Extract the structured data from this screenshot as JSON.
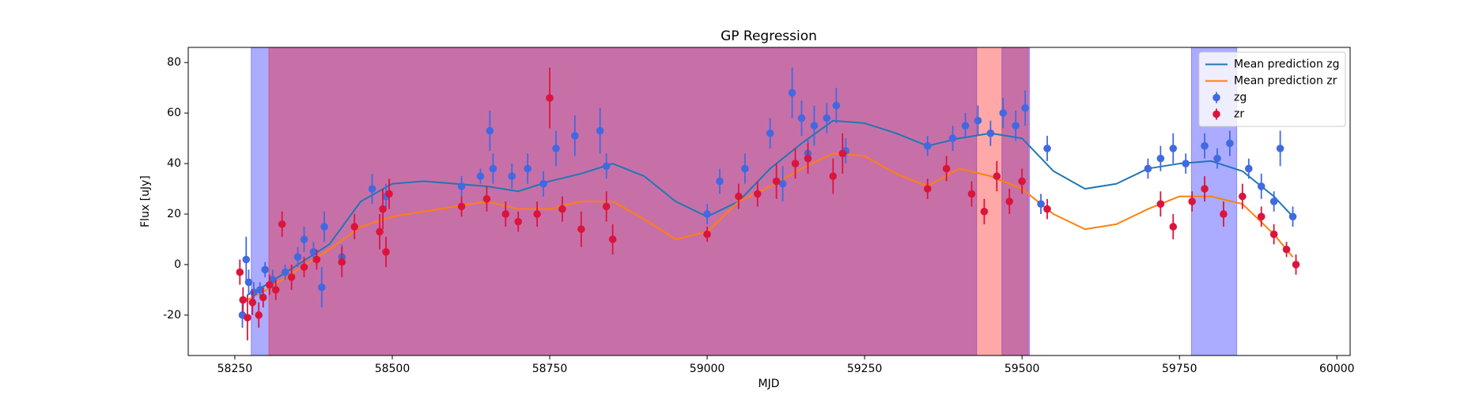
{
  "chart_data": {
    "type": "line",
    "title": "GP Regression",
    "x_label": "MJD",
    "y_label": "Flux [uJy]",
    "xlim": [
      58176,
      60021
    ],
    "ylim": [
      -36,
      86
    ],
    "xticks": [
      58250,
      58500,
      58750,
      59000,
      59250,
      59500,
      59750,
      60000
    ],
    "yticks": [
      -20,
      0,
      20,
      40,
      60,
      80
    ],
    "legend": "upper right",
    "grid": false,
    "shaded_regions": [
      {
        "series": "zg",
        "color": "#0000ff",
        "opacity": 0.33,
        "ranges": [
          [
            58276,
            59428
          ],
          [
            59468,
            59512
          ],
          [
            59769,
            59841
          ]
        ]
      },
      {
        "series": "zr",
        "color": "#ff0000",
        "opacity": 0.34,
        "ranges": [
          [
            58304,
            59510
          ]
        ]
      }
    ],
    "series": [
      {
        "name": "Mean prediction zg",
        "kind": "line",
        "color": "#1f77b4",
        "x": [
          58270,
          58300,
          58350,
          58400,
          58450,
          58500,
          58550,
          58600,
          58650,
          58700,
          58750,
          58800,
          58850,
          58900,
          58950,
          59000,
          59050,
          59100,
          59150,
          59200,
          59250,
          59300,
          59350,
          59400,
          59450,
          59500,
          59550,
          59600,
          59650,
          59700,
          59750,
          59800,
          59850,
          59900,
          59930
        ],
        "values": [
          -12,
          -8,
          0,
          8,
          25,
          32,
          33,
          32,
          31,
          29,
          33,
          36,
          40,
          35,
          25,
          19,
          25,
          38,
          48,
          57,
          56,
          52,
          47,
          50,
          52,
          50,
          37,
          30,
          32,
          38,
          40,
          41,
          37,
          27,
          19
        ]
      },
      {
        "name": "Mean prediction zr",
        "kind": "line",
        "color": "#ff7f0e",
        "x": [
          58270,
          58300,
          58350,
          58400,
          58450,
          58500,
          58550,
          58600,
          58650,
          58700,
          58750,
          58800,
          58850,
          58900,
          58950,
          59000,
          59050,
          59100,
          59150,
          59200,
          59250,
          59300,
          59350,
          59400,
          59450,
          59500,
          59550,
          59600,
          59650,
          59700,
          59750,
          59800,
          59850,
          59900,
          59930
        ],
        "values": [
          -14,
          -10,
          -2,
          6,
          15,
          19,
          21,
          23,
          25,
          22,
          22,
          25,
          25,
          18,
          10,
          13,
          25,
          31,
          38,
          44,
          43,
          36,
          31,
          38,
          35,
          30,
          20,
          14,
          16,
          22,
          27,
          27,
          24,
          12,
          3
        ]
      },
      {
        "name": "zg",
        "kind": "errorbar",
        "color": "#4169e1",
        "x": [
          58262,
          58268,
          58272,
          58280,
          58290,
          58298,
          58310,
          58330,
          58350,
          58360,
          58375,
          58388,
          58392,
          58420,
          58468,
          58490,
          58610,
          58640,
          58655,
          58660,
          58690,
          58715,
          58740,
          58760,
          58790,
          58830,
          58840,
          59000,
          59020,
          59060,
          59100,
          59120,
          59135,
          59150,
          59160,
          59170,
          59190,
          59205,
          59220,
          59350,
          59390,
          59410,
          59430,
          59450,
          59470,
          59490,
          59505,
          59530,
          59540,
          59700,
          59720,
          59740,
          59760,
          59790,
          59810,
          59830,
          59860,
          59880,
          59900,
          59910,
          59930
        ],
        "values": [
          -20,
          2,
          -7,
          -11,
          -10,
          -2,
          -6,
          -3,
          3,
          10,
          5,
          -9,
          15,
          3,
          30,
          27,
          31,
          35,
          53,
          38,
          35,
          38,
          32,
          46,
          51,
          53,
          39,
          20,
          33,
          38,
          52,
          32,
          68,
          58,
          44,
          55,
          58,
          63,
          45,
          47,
          50,
          55,
          57,
          52,
          60,
          55,
          62,
          24,
          46,
          38,
          42,
          46,
          40,
          47,
          42,
          48,
          38,
          31,
          25,
          46,
          19
        ],
        "errors": [
          5,
          9,
          5,
          4,
          3,
          3,
          4,
          3,
          4,
          5,
          4,
          8,
          6,
          5,
          6,
          5,
          4,
          3,
          8,
          6,
          5,
          6,
          5,
          7,
          8,
          9,
          5,
          4,
          5,
          6,
          6,
          7,
          10,
          7,
          6,
          8,
          6,
          7,
          5,
          4,
          5,
          5,
          6,
          5,
          6,
          6,
          7,
          4,
          5,
          4,
          5,
          6,
          4,
          5,
          4,
          5,
          4,
          5,
          4,
          7,
          4
        ]
      },
      {
        "name": "zr",
        "kind": "errorbar",
        "color": "#dc143c",
        "x": [
          58258,
          58263,
          58270,
          58278,
          58288,
          58295,
          58305,
          58315,
          58325,
          58340,
          58360,
          58380,
          58420,
          58440,
          58480,
          58485,
          58490,
          58495,
          58610,
          58650,
          58680,
          58700,
          58730,
          58750,
          58770,
          58800,
          58840,
          58850,
          59000,
          59050,
          59080,
          59110,
          59140,
          59160,
          59200,
          59215,
          59350,
          59380,
          59420,
          59440,
          59460,
          59480,
          59500,
          59540,
          59720,
          59740,
          59770,
          59790,
          59820,
          59850,
          59880,
          59900,
          59920,
          59935
        ],
        "values": [
          -3,
          -14,
          -21,
          -15,
          -20,
          -13,
          -8,
          -10,
          16,
          -5,
          -1,
          2,
          1,
          15,
          13,
          22,
          5,
          28,
          23,
          26,
          20,
          17,
          20,
          66,
          22,
          14,
          23,
          10,
          12,
          27,
          28,
          33,
          40,
          42,
          35,
          44,
          30,
          38,
          28,
          21,
          35,
          25,
          33,
          22,
          24,
          15,
          25,
          30,
          20,
          27,
          19,
          12,
          6,
          0
        ],
        "errors": [
          5,
          5,
          9,
          5,
          5,
          4,
          4,
          4,
          5,
          5,
          4,
          4,
          6,
          5,
          7,
          8,
          6,
          6,
          4,
          5,
          5,
          4,
          5,
          12,
          5,
          7,
          6,
          6,
          3,
          5,
          5,
          7,
          6,
          6,
          7,
          8,
          4,
          5,
          5,
          5,
          6,
          5,
          5,
          4,
          5,
          5,
          4,
          5,
          5,
          5,
          4,
          4,
          3,
          4
        ]
      }
    ]
  }
}
